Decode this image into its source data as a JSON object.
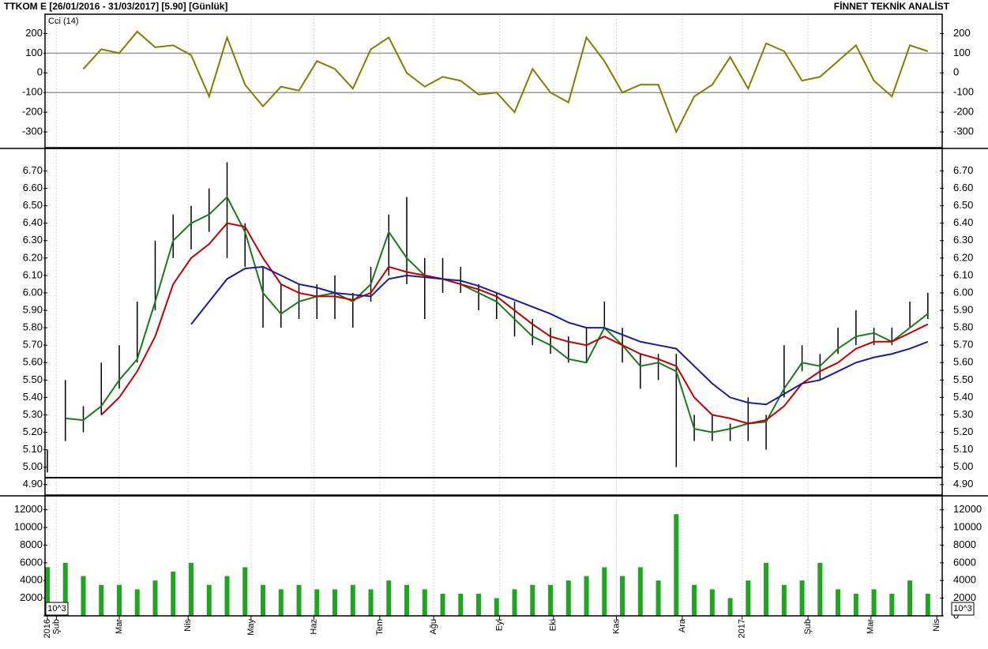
{
  "header": {
    "title": "TTKOM E  [26/01/2016 - 31/03/2017]  [5.90]  [Günlük]",
    "brand": "FİNNET TEKNİK ANALİST"
  },
  "chart_data": [
    {
      "type": "line",
      "label": "Cci (14)",
      "color": "#7f7f00",
      "x": [
        0,
        6,
        12,
        18,
        24,
        30,
        36,
        42,
        48,
        54,
        60,
        66,
        72,
        78,
        84,
        90,
        96,
        102,
        108,
        114,
        120,
        126,
        132,
        138,
        144,
        150,
        156,
        162,
        168,
        174,
        180,
        186,
        192,
        198,
        204,
        210,
        216,
        222,
        228,
        234,
        240,
        246,
        252,
        258,
        264,
        270,
        276,
        282,
        288,
        294
      ],
      "values": [
        null,
        null,
        20,
        120,
        100,
        210,
        130,
        140,
        90,
        -120,
        180,
        -60,
        -170,
        -70,
        -90,
        60,
        20,
        -80,
        120,
        180,
        0,
        -70,
        -20,
        -40,
        -110,
        -100,
        -200,
        20,
        -100,
        -150,
        180,
        60,
        -100,
        -60,
        -60,
        -300,
        -120,
        -60,
        80,
        -80,
        150,
        110,
        -40,
        -20,
        60,
        140,
        -40,
        -120,
        140,
        110
      ],
      "xlim": [
        0,
        298
      ],
      "ylim": [
        -380,
        290
      ],
      "yticks": [
        -300,
        -200,
        -100,
        0,
        100,
        200
      ],
      "hlines": [
        100,
        -100
      ]
    },
    {
      "type": "hilo",
      "color": "#000000",
      "x": [
        0,
        6,
        12,
        18,
        24,
        30,
        36,
        42,
        48,
        54,
        60,
        66,
        72,
        78,
        84,
        90,
        96,
        102,
        108,
        114,
        120,
        126,
        132,
        138,
        144,
        150,
        156,
        162,
        168,
        174,
        180,
        186,
        192,
        198,
        204,
        210,
        216,
        222,
        228,
        234,
        240,
        246,
        252,
        258,
        264,
        270,
        276,
        282,
        288,
        294
      ],
      "high": [
        5.1,
        5.5,
        5.35,
        5.6,
        5.7,
        5.95,
        6.3,
        6.45,
        6.5,
        6.6,
        6.75,
        6.4,
        6.15,
        6.05,
        6.05,
        6.05,
        6.1,
        6.0,
        6.15,
        6.45,
        6.55,
        6.2,
        6.2,
        6.15,
        6.05,
        6.0,
        5.95,
        5.85,
        5.8,
        5.75,
        5.8,
        5.95,
        5.8,
        5.65,
        5.65,
        5.65,
        5.3,
        5.3,
        5.25,
        5.4,
        5.3,
        5.7,
        5.7,
        5.65,
        5.8,
        5.9,
        5.8,
        5.8,
        5.95,
        6.0
      ],
      "low": [
        4.97,
        5.15,
        5.2,
        5.3,
        5.45,
        5.6,
        5.9,
        6.2,
        6.25,
        6.35,
        6.2,
        6.15,
        5.8,
        5.8,
        5.85,
        5.85,
        5.85,
        5.8,
        5.95,
        6.1,
        6.05,
        5.85,
        6.0,
        6.0,
        5.9,
        5.85,
        5.75,
        5.7,
        5.65,
        5.6,
        5.6,
        5.8,
        5.6,
        5.45,
        5.5,
        5.0,
        5.15,
        5.15,
        5.15,
        5.15,
        5.1,
        5.4,
        5.55,
        5.5,
        5.65,
        5.7,
        5.7,
        5.7,
        5.8,
        5.85
      ],
      "series": [
        {
          "color": "#1a7a1a",
          "values": [
            null,
            5.28,
            5.27,
            5.35,
            5.5,
            5.62,
            5.95,
            6.3,
            6.4,
            6.45,
            6.55,
            6.35,
            6.0,
            5.88,
            5.95,
            5.98,
            6.0,
            5.95,
            6.05,
            6.35,
            6.2,
            6.1,
            6.08,
            6.05,
            6.0,
            5.95,
            5.85,
            5.75,
            5.7,
            5.62,
            5.6,
            5.8,
            5.7,
            5.58,
            5.6,
            5.55,
            5.22,
            5.2,
            5.22,
            5.25,
            5.26,
            5.45,
            5.6,
            5.58,
            5.68,
            5.75,
            5.77,
            5.72,
            5.8,
            5.88
          ]
        },
        {
          "color": "#c00000",
          "values": [
            null,
            null,
            null,
            5.3,
            5.4,
            5.55,
            5.75,
            6.05,
            6.2,
            6.28,
            6.4,
            6.38,
            6.2,
            6.05,
            6.0,
            5.98,
            5.98,
            5.96,
            6.0,
            6.15,
            6.12,
            6.1,
            6.08,
            6.05,
            6.02,
            5.98,
            5.9,
            5.82,
            5.75,
            5.72,
            5.7,
            5.75,
            5.7,
            5.65,
            5.62,
            5.58,
            5.4,
            5.3,
            5.28,
            5.25,
            5.27,
            5.35,
            5.48,
            5.55,
            5.6,
            5.68,
            5.72,
            5.72,
            5.77,
            5.82
          ]
        },
        {
          "color": "#1c1c9c",
          "values": [
            null,
            null,
            null,
            null,
            null,
            null,
            null,
            null,
            5.82,
            5.95,
            6.08,
            6.14,
            6.15,
            6.1,
            6.05,
            6.03,
            6.0,
            5.99,
            5.98,
            6.08,
            6.1,
            6.09,
            6.08,
            6.07,
            6.04,
            6.0,
            5.96,
            5.92,
            5.88,
            5.83,
            5.8,
            5.8,
            5.76,
            5.72,
            5.7,
            5.68,
            5.58,
            5.48,
            5.4,
            5.37,
            5.36,
            5.42,
            5.48,
            5.5,
            5.55,
            5.6,
            5.63,
            5.65,
            5.68,
            5.72
          ]
        }
      ],
      "xlim": [
        0,
        298
      ],
      "ylim": [
        4.84,
        6.82
      ],
      "yticks": [
        {
          "value": 4.9,
          "label": "4.90"
        },
        {
          "value": 5.0,
          "label": "5.00"
        },
        {
          "value": 5.1,
          "label": "5.10"
        },
        {
          "value": 5.2,
          "label": "5.20"
        },
        {
          "value": 5.3,
          "label": "5.30"
        },
        {
          "value": 5.4,
          "label": "5.40"
        },
        {
          "value": 5.5,
          "label": "5.50"
        },
        {
          "value": 5.6,
          "label": "5.60"
        },
        {
          "value": 5.7,
          "label": "5.70"
        },
        {
          "value": 5.8,
          "label": "5.80"
        },
        {
          "value": 5.9,
          "label": "5.90"
        },
        {
          "value": 6.0,
          "label": "6.00"
        },
        {
          "value": 6.1,
          "label": "6.10"
        },
        {
          "value": 6.2,
          "label": "6.20"
        },
        {
          "value": 6.3,
          "label": "6.30"
        },
        {
          "value": 6.4,
          "label": "6.40"
        },
        {
          "value": 6.5,
          "label": "6.50"
        },
        {
          "value": 6.6,
          "label": "6.60"
        },
        {
          "value": 6.7,
          "label": "6.70"
        }
      ]
    },
    {
      "type": "bar",
      "color": "#1fa51f",
      "unit_label": "10^3",
      "x": [
        0,
        6,
        12,
        18,
        24,
        30,
        36,
        42,
        48,
        54,
        60,
        66,
        72,
        78,
        84,
        90,
        96,
        102,
        108,
        114,
        120,
        126,
        132,
        138,
        144,
        150,
        156,
        162,
        168,
        174,
        180,
        186,
        192,
        198,
        204,
        210,
        216,
        222,
        228,
        234,
        240,
        246,
        252,
        258,
        264,
        270,
        276,
        282,
        288,
        294
      ],
      "values": [
        5500,
        6000,
        4500,
        3500,
        3500,
        3000,
        4000,
        5000,
        6000,
        3500,
        4500,
        5500,
        3500,
        3000,
        3500,
        3000,
        3000,
        3500,
        3000,
        4000,
        3500,
        3000,
        2500,
        2500,
        2500,
        2000,
        3000,
        3500,
        3500,
        4000,
        4500,
        5500,
        4500,
        5500,
        4000,
        11500,
        3500,
        3000,
        2000,
        4000,
        6000,
        3500,
        4000,
        6000,
        3000,
        2500,
        3000,
        2500,
        4000,
        2500
      ],
      "xlim": [
        0,
        298
      ],
      "ylim": [
        0,
        13400
      ],
      "yticks": [
        0,
        2000,
        4000,
        6000,
        8000,
        10000,
        12000
      ],
      "xticks": [
        {
          "value": 0,
          "label": "2016"
        },
        {
          "value": 3,
          "label": "Şub"
        },
        {
          "value": 24,
          "label": "Mar"
        },
        {
          "value": 47,
          "label": "Nis"
        },
        {
          "value": 68,
          "label": "May"
        },
        {
          "value": 89,
          "label": "Haz"
        },
        {
          "value": 111,
          "label": "Tem"
        },
        {
          "value": 129,
          "label": "Ağu"
        },
        {
          "value": 151,
          "label": "Eyl"
        },
        {
          "value": 169,
          "label": "Eki"
        },
        {
          "value": 190,
          "label": "Kas"
        },
        {
          "value": 212,
          "label": "Ara"
        },
        {
          "value": 232,
          "label": "2017"
        },
        {
          "value": 254,
          "label": "Şub"
        },
        {
          "value": 275,
          "label": "Mar"
        },
        {
          "value": 297,
          "label": "Nis"
        }
      ]
    }
  ]
}
